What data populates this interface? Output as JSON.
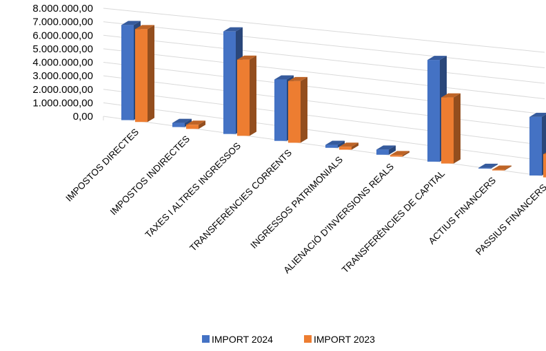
{
  "chart_data": {
    "type": "bar",
    "subtype": "3d-clustered-column",
    "title": "",
    "xlabel": "",
    "ylabel": "",
    "ylim": [
      0,
      8000000
    ],
    "y_ticks": [
      "0,00",
      "1.000.000,00",
      "2.000.000,00",
      "3.000.000,00",
      "4.000.000,00",
      "5.000.000,00",
      "6.000.000,00",
      "7.000.000,00",
      "8.000.000,00"
    ],
    "grid": true,
    "legend_position": "bottom",
    "categories": [
      "IMPOSTOS DIRECTES",
      "IMPOSTOS INDIRECTES",
      "TAXES I ALTRES INGRESSOS",
      "TRANSFERÈNCIES CORRENTS",
      "INGRESSOS PATRIMONIALS",
      "ALIENACIÓ D'INVERSIONS REALS",
      "TRANSFERÈNCIES DE CAPITAL",
      "ACTIUS FINANCERS",
      "PASSIUS FINANCERS"
    ],
    "series": [
      {
        "name": "IMPORT 2024",
        "color": "#4472C4",
        "values": [
          7000000,
          300000,
          7300000,
          4300000,
          200000,
          350000,
          6800000,
          50000,
          3800000
        ]
      },
      {
        "name": "IMPORT 2023",
        "color": "#ED7D31",
        "values": [
          6800000,
          300000,
          5400000,
          4300000,
          200000,
          100000,
          4400000,
          50000,
          1500000
        ]
      }
    ]
  }
}
